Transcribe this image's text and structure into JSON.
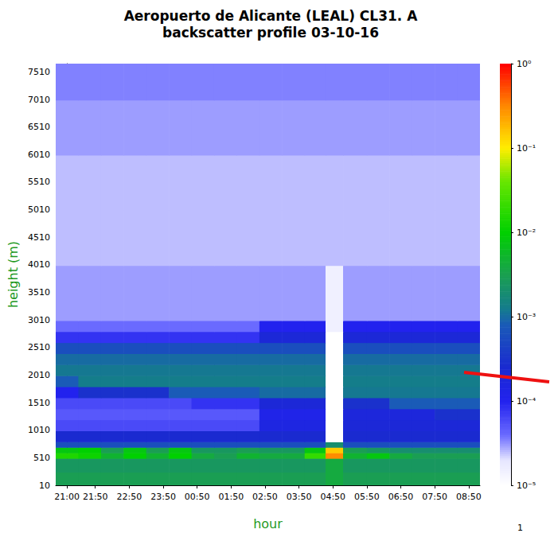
{
  "chart_data": {
    "type": "heatmap",
    "title": "Aeropuerto de Alicante (LEAL) CL31. A",
    "subtitle": "backscatter profile 03-10-16",
    "xlabel": "hour",
    "ylabel": "height (m)",
    "annotations": [
      "1"
    ],
    "grid": false,
    "xlim": [
      -20,
      730
    ],
    "xticks": [
      {
        "value": 0,
        "label": "21:00"
      },
      {
        "value": 50,
        "label": "21:50"
      },
      {
        "value": 110,
        "label": "22:50"
      },
      {
        "value": 170,
        "label": "23:50"
      },
      {
        "value": 230,
        "label": "00:50"
      },
      {
        "value": 290,
        "label": "01:50"
      },
      {
        "value": 350,
        "label": "02:50"
      },
      {
        "value": 410,
        "label": "03:50"
      },
      {
        "value": 470,
        "label": "04:50"
      },
      {
        "value": 530,
        "label": "05:50"
      },
      {
        "value": 590,
        "label": "06:50"
      },
      {
        "value": 650,
        "label": "07:50"
      },
      {
        "value": 710,
        "label": "08:50"
      }
    ],
    "ylim": [
      10,
      7660
    ],
    "yticks": [
      10,
      510,
      1010,
      1510,
      2010,
      2510,
      3010,
      3510,
      4010,
      4510,
      5010,
      5510,
      6010,
      6510,
      7010,
      7510
    ],
    "x_edges": [
      -20,
      20,
      60,
      100,
      140,
      180,
      220,
      260,
      300,
      340,
      380,
      420,
      457,
      488,
      530,
      570,
      610,
      650,
      690,
      730
    ],
    "y_edges": [
      10,
      250,
      500,
      600,
      700,
      800,
      1000,
      1200,
      1400,
      1600,
      1800,
      2000,
      2200,
      2400,
      2600,
      2800,
      3000,
      4000,
      5000,
      6000,
      7000,
      7660
    ],
    "cells": [
      [
        0.003,
        0.003,
        0.003,
        0.003,
        0.003,
        0.003,
        0.003,
        0.003,
        0.003,
        0.003,
        0.003,
        0.003,
        0.004,
        0.003,
        0.003,
        0.003,
        0.003,
        0.003,
        0.003
      ],
      [
        0.0025,
        0.0025,
        0.0025,
        0.0025,
        0.0025,
        0.0025,
        0.0025,
        0.0025,
        0.0025,
        0.0025,
        0.0025,
        0.0025,
        0.004,
        0.0025,
        0.0025,
        0.0025,
        0.0025,
        0.0025,
        0.0025
      ],
      [
        0.015,
        0.012,
        0.005,
        0.01,
        0.005,
        0.01,
        0.004,
        0.003,
        0.005,
        0.004,
        0.004,
        0.02,
        0.3,
        0.005,
        0.008,
        0.004,
        0.003,
        0.003,
        0.003
      ],
      [
        0.008,
        0.01,
        0.003,
        0.008,
        0.003,
        0.008,
        0.0025,
        0.0025,
        0.003,
        0.0025,
        0.0025,
        0.008,
        0.15,
        0.003,
        0.0025,
        0.002,
        0.002,
        0.002,
        0.002
      ],
      [
        0.0006,
        0.0006,
        0.0006,
        0.0006,
        0.0006,
        0.0006,
        0.0006,
        0.0006,
        0.0006,
        0.0006,
        0.0006,
        0.0006,
        0.002,
        0.0006,
        0.0006,
        0.0006,
        0.0006,
        0.0006,
        0.0006
      ],
      [
        0.00025,
        0.00025,
        0.00025,
        0.00025,
        0.00025,
        0.00025,
        0.00025,
        0.00025,
        0.00025,
        0.00025,
        0.00025,
        0.00025,
        1e-05,
        0.00025,
        0.00025,
        0.00025,
        0.00025,
        0.00025,
        0.00025
      ],
      [
        6e-05,
        6e-05,
        6e-05,
        6e-05,
        6e-05,
        6e-05,
        6e-05,
        6e-05,
        6e-05,
        0.00015,
        0.00015,
        0.00015,
        1e-05,
        0.0002,
        0.0002,
        0.0002,
        0.0002,
        0.0002,
        0.0002
      ],
      [
        5e-05,
        5e-05,
        5e-05,
        5e-05,
        5e-05,
        5e-05,
        5e-05,
        5e-05,
        5e-05,
        0.00012,
        0.00012,
        0.00012,
        1e-05,
        0.00018,
        0.00018,
        0.00018,
        0.00018,
        0.0003,
        0.0003
      ],
      [
        6e-05,
        6e-05,
        6e-05,
        6e-05,
        6e-05,
        6e-05,
        8e-05,
        8e-05,
        8e-05,
        0.0002,
        0.0002,
        0.0002,
        1e-05,
        0.0003,
        0.0003,
        0.0008,
        0.0008,
        0.0008,
        0.0008
      ],
      [
        0.0001,
        0.0003,
        0.0003,
        0.0003,
        0.0003,
        0.0008,
        0.0008,
        0.0008,
        0.0008,
        0.001,
        0.001,
        0.001,
        1e-05,
        0.0012,
        0.0012,
        0.0012,
        0.0012,
        0.0012,
        0.0012
      ],
      [
        0.0008,
        0.0013,
        0.0013,
        0.0013,
        0.0013,
        0.0013,
        0.0013,
        0.0013,
        0.0013,
        0.0013,
        0.0013,
        0.0013,
        1e-05,
        0.0013,
        0.0013,
        0.0013,
        0.0013,
        0.0013,
        0.0013
      ],
      [
        0.0012,
        0.0012,
        0.0012,
        0.0012,
        0.0012,
        0.0012,
        0.0012,
        0.0012,
        0.0012,
        0.0012,
        0.0012,
        0.0012,
        1e-05,
        0.0012,
        0.0012,
        0.0012,
        0.0012,
        0.0012,
        0.0012
      ],
      [
        0.001,
        0.001,
        0.001,
        0.001,
        0.001,
        0.001,
        0.001,
        0.001,
        0.001,
        0.001,
        0.001,
        0.001,
        1e-05,
        0.001,
        0.001,
        0.001,
        0.001,
        0.001,
        0.001
      ],
      [
        0.0006,
        0.0006,
        0.0006,
        0.0006,
        0.0006,
        0.0006,
        0.0006,
        0.0006,
        0.0006,
        0.0006,
        0.0006,
        0.0006,
        1e-05,
        0.0006,
        0.0006,
        0.0006,
        0.0006,
        0.0006,
        0.0006
      ],
      [
        8e-05,
        8e-05,
        8e-05,
        8e-05,
        8e-05,
        8e-05,
        8e-05,
        8e-05,
        8e-05,
        0.0002,
        0.0002,
        0.0002,
        1e-05,
        0.0002,
        0.0002,
        0.0002,
        0.0002,
        0.0002,
        0.0002
      ],
      [
        4e-05,
        4e-05,
        4e-05,
        4e-05,
        4e-05,
        4e-05,
        4e-05,
        4e-05,
        4e-05,
        0.0001,
        0.0001,
        0.0001,
        1.5e-05,
        0.0001,
        0.0001,
        0.0001,
        0.0001,
        0.0001,
        0.0001
      ],
      [
        3e-05,
        3e-05,
        3e-05,
        3e-05,
        3e-05,
        3e-05,
        3e-05,
        3e-05,
        3e-05,
        3e-05,
        3e-05,
        3e-05,
        1.5e-05,
        3e-05,
        3e-05,
        3e-05,
        3e-05,
        3e-05,
        3e-05
      ],
      [
        2.5e-05,
        2.5e-05,
        2.5e-05,
        2.5e-05,
        2.5e-05,
        2.5e-05,
        2.5e-05,
        2.5e-05,
        2.5e-05,
        2.5e-05,
        2.5e-05,
        2.5e-05,
        2.5e-05,
        2.5e-05,
        2.5e-05,
        2.5e-05,
        2.5e-05,
        2.5e-05,
        2.5e-05
      ],
      [
        2.5e-05,
        2.5e-05,
        2.5e-05,
        2.5e-05,
        2.5e-05,
        2.5e-05,
        2.5e-05,
        2.5e-05,
        2.5e-05,
        2.5e-05,
        2.5e-05,
        2.5e-05,
        2.5e-05,
        2.5e-05,
        2.5e-05,
        2.5e-05,
        2.5e-05,
        2.5e-05,
        2.5e-05
      ],
      [
        3e-05,
        3e-05,
        3e-05,
        3e-05,
        3e-05,
        3e-05,
        3e-05,
        3e-05,
        3e-05,
        3e-05,
        3e-05,
        3e-05,
        3e-05,
        3e-05,
        3e-05,
        3e-05,
        3e-05,
        3e-05,
        3e-05
      ],
      [
        3.5e-05,
        3.5e-05,
        3.5e-05,
        3.5e-05,
        3.5e-05,
        3.5e-05,
        3.5e-05,
        3.5e-05,
        3.5e-05,
        3.5e-05,
        3.5e-05,
        3.5e-05,
        3.5e-05,
        3.5e-05,
        3.5e-05,
        3.5e-05,
        3.5e-05,
        3.5e-05,
        3.5e-05
      ]
    ],
    "colorbar": {
      "log": true,
      "range": [
        1e-05,
        1
      ],
      "ticks": [
        {
          "value": 1e-05,
          "label": "10⁻⁵"
        },
        {
          "value": 0.0001,
          "label": "10⁻⁴"
        },
        {
          "value": 0.001,
          "label": "10⁻³"
        },
        {
          "value": 0.01,
          "label": "10⁻²"
        },
        {
          "value": 0.1,
          "label": "10⁻¹"
        },
        {
          "value": 1,
          "label": "10⁰"
        }
      ]
    }
  }
}
